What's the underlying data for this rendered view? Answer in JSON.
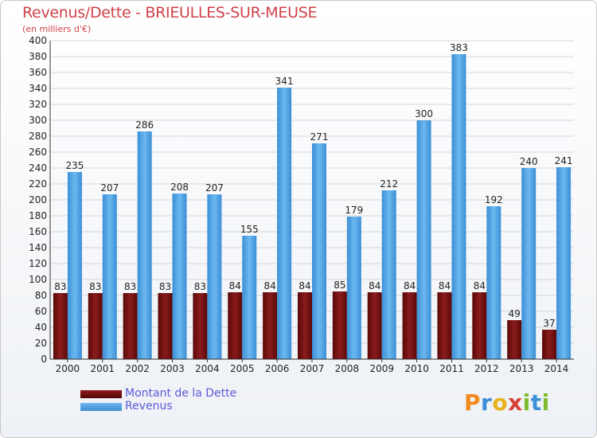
{
  "title": "Revenus/Dette - BRIEULLES-SUR-MEUSE",
  "subtitle": "(en milliers d'€)",
  "logo": {
    "letters": [
      "P",
      "r",
      "o",
      "x",
      "i",
      "t",
      "i"
    ],
    "colors": [
      "#f28b1e",
      "#3a8fd8",
      "#e7b21c",
      "#d9403a",
      "#7dbb2e",
      "#3a8fd8",
      "#7dbb2e"
    ]
  },
  "legend": {
    "items": [
      "Montant de la Dette",
      "Revenus"
    ]
  },
  "chart_data": {
    "type": "bar",
    "categories": [
      "2000",
      "2001",
      "2002",
      "2003",
      "2004",
      "2005",
      "2006",
      "2007",
      "2008",
      "2009",
      "2010",
      "2011",
      "2012",
      "2013",
      "2014"
    ],
    "series": [
      {
        "name": "Montant de la Dette",
        "color": "#6e0f0f",
        "values": [
          83,
          83,
          83,
          83,
          83,
          84,
          84,
          84,
          85,
          84,
          84,
          84,
          84,
          49,
          37
        ]
      },
      {
        "name": "Revenus",
        "color": "#4ea3e6",
        "values": [
          235,
          207,
          286,
          208,
          207,
          155,
          341,
          271,
          179,
          212,
          300,
          383,
          192,
          240,
          241
        ]
      }
    ],
    "ylim": [
      0,
      400
    ],
    "ytick_step": 20,
    "yticks": [
      "0",
      "20",
      "40",
      "60",
      "80",
      "100",
      "120",
      "140",
      "160",
      "180",
      "200",
      "220",
      "240",
      "260",
      "280",
      "300",
      "320",
      "340",
      "360",
      "380",
      "400"
    ],
    "grid": true,
    "legend_position": "bottom-left"
  }
}
